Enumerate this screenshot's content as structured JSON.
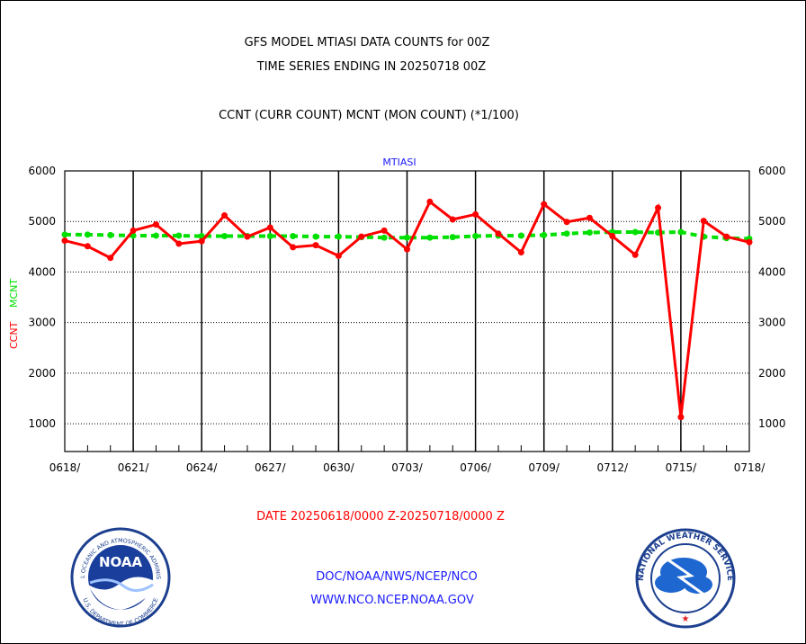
{
  "header": {
    "title_line1": "GFS MODEL MTIASI DATA COUNTS for 00Z",
    "title_line2": "TIME SERIES ENDING IN 20250718 00Z",
    "subtitle": "CCNT (CURR COUNT) MCNT (MON COUNT) (*1/100)"
  },
  "footer": {
    "date_range": "DATE 20250618/0000 Z-20250718/0000 Z",
    "org_path": "DOC/NOAA/NWS/NCEP/NCO",
    "website": "WWW.NCO.NCEP.NOAA.GOV",
    "noaa_logo_text": "NOAA",
    "noaa_ring_text": "NATIONAL OCEANIC AND ATMOSPHERIC ADMINISTRATION",
    "noaa_ring_text_bottom": "U.S. DEPARTMENT OF COMMERCE",
    "nws_ring_text": "NATIONAL WEATHER SERVICE"
  },
  "colors": {
    "ccnt": "#ff0000",
    "mcnt": "#00e000",
    "title": "#000000",
    "date": "#ff0000",
    "links": "#1a1aff",
    "panel_label": "#1a1aff"
  },
  "chart_data": {
    "type": "line",
    "title": "MTIASI",
    "ylabel_ccnt": "CCNT",
    "ylabel_mcnt": "MCNT",
    "ylim": [
      450,
      6000
    ],
    "yticks": [
      1000,
      2000,
      3000,
      4000,
      5000,
      6000
    ],
    "x_tick_labels": [
      "0618/",
      "0621/",
      "0624/",
      "0627/",
      "0630/",
      "0703/",
      "0706/",
      "0709/",
      "0712/",
      "0715/",
      "0718/"
    ],
    "x_days": 30,
    "series": [
      {
        "name": "CCNT",
        "values": [
          4620,
          4510,
          4280,
          4820,
          4940,
          4560,
          4610,
          5120,
          4700,
          4880,
          4490,
          4530,
          4320,
          4700,
          4820,
          4450,
          5390,
          5040,
          5140,
          4760,
          4390,
          5340,
          4990,
          5070,
          4710,
          4340,
          5270,
          1130,
          5010,
          4700,
          4590
        ]
      },
      {
        "name": "MCNT",
        "values": [
          4740,
          4740,
          4730,
          4720,
          4720,
          4720,
          4710,
          4710,
          4710,
          4710,
          4710,
          4700,
          4700,
          4690,
          4680,
          4680,
          4680,
          4690,
          4710,
          4720,
          4720,
          4730,
          4760,
          4780,
          4790,
          4790,
          4780,
          4790,
          4700,
          4670,
          4660
        ]
      }
    ]
  }
}
